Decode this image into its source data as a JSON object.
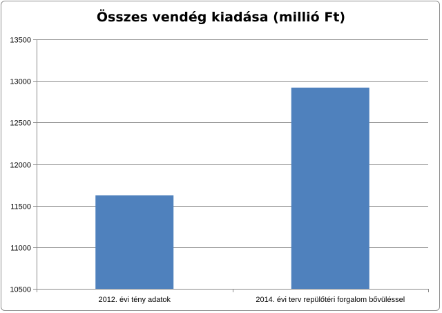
{
  "chart_data": {
    "type": "bar",
    "title": "Összes vendég kiadása (millió Ft)",
    "categories": [
      "2012. évi tény adatok",
      "2014. évi terv repülőtéri forgalom bővüléssel"
    ],
    "values": [
      11625,
      12920
    ],
    "ylim": [
      10500,
      13500
    ],
    "yticks": [
      10500,
      11000,
      11500,
      12000,
      12500,
      13000,
      13500
    ],
    "xlabel": "",
    "ylabel": "",
    "grid": true,
    "legend": "none",
    "bar_color": "#4f81bd"
  }
}
